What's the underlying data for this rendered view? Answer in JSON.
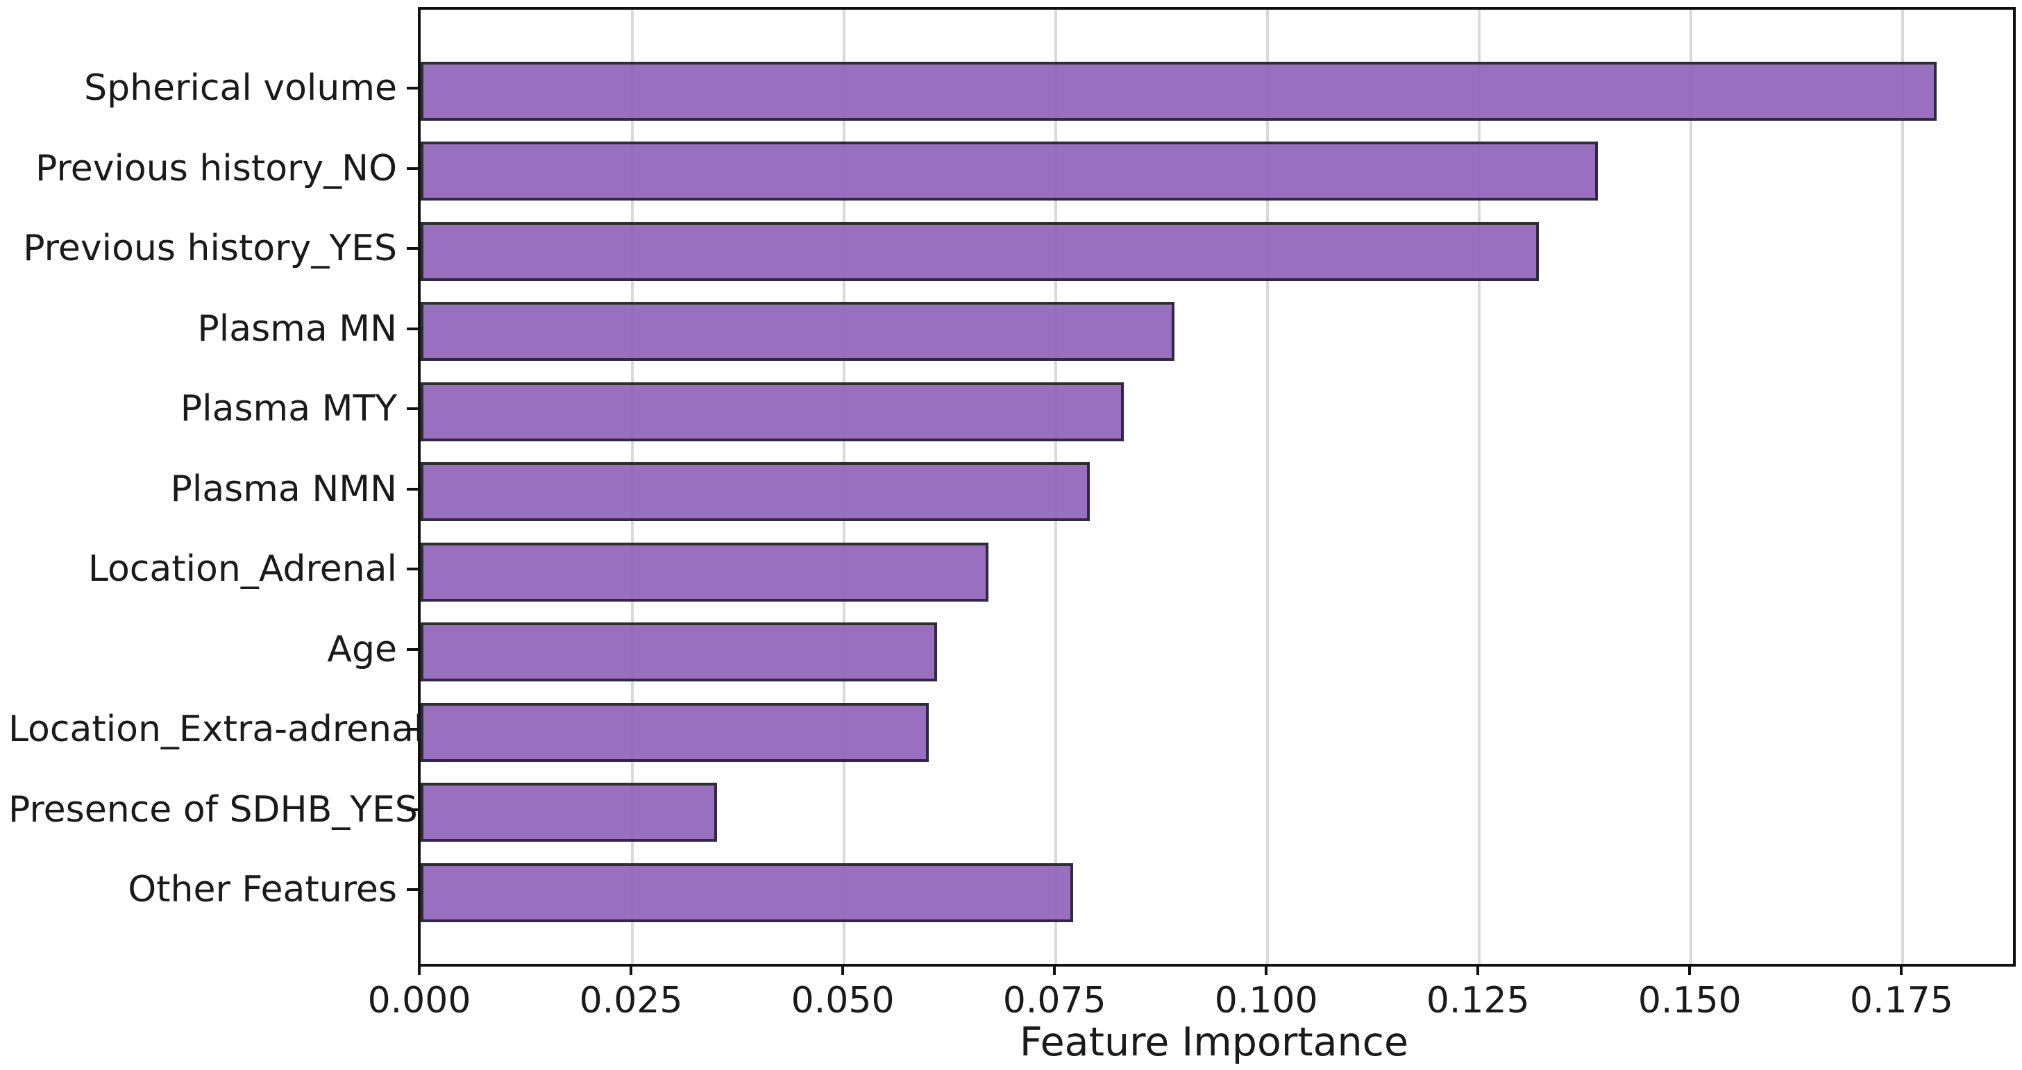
{
  "chart_data": {
    "type": "bar",
    "orientation": "horizontal",
    "title": "",
    "xlabel": "Feature Importance",
    "ylabel": "",
    "categories": [
      "Spherical volume",
      "Previous history_NO",
      "Previous history_YES",
      "Plasma MN",
      "Plasma MTY",
      "Plasma NMN",
      "Location_Adrenal",
      "Age",
      "Location_Extra-adrenal",
      "Presence of SDHB_YES",
      "Other Features"
    ],
    "values": [
      0.179,
      0.139,
      0.132,
      0.089,
      0.083,
      0.079,
      0.067,
      0.061,
      0.06,
      0.035,
      0.077
    ],
    "xlim": [
      0,
      0.188
    ],
    "xticks": [
      0.0,
      0.025,
      0.05,
      0.075,
      0.1,
      0.125,
      0.15,
      0.175
    ],
    "xtick_labels": [
      "0.000",
      "0.025",
      "0.050",
      "0.075",
      "0.100",
      "0.125",
      "0.150",
      "0.175"
    ],
    "grid": "vertical-only",
    "legend": "none",
    "bar_color": "#9467bd",
    "bar_edge_color": "#2f2b38",
    "grid_color": "#d9d9d9",
    "spine_color": "#111111",
    "text_color": "#1a1a1a",
    "background_color": "#ffffff"
  }
}
